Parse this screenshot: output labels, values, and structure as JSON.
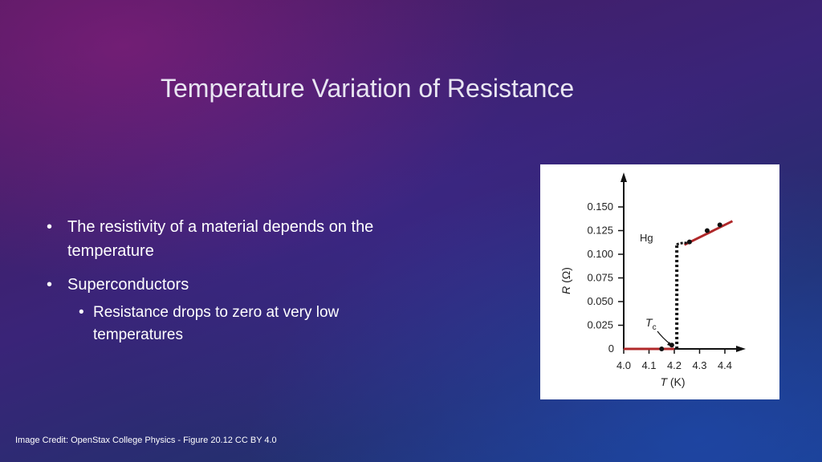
{
  "title": "Temperature Variation of Resistance",
  "bullets": [
    {
      "text": "The resistivity of a material depends on the temperature"
    },
    {
      "text": "Superconductors",
      "sub": [
        {
          "text": "Resistance drops to zero at very low temperatures"
        }
      ]
    }
  ],
  "credit": "Image Credit: OpenStax College Physics - Figure 20.12 CC BY 4.0",
  "chart_data": {
    "type": "line",
    "xlabel_symbol": "T",
    "xlabel_unit": "(K)",
    "ylabel_symbol": "R",
    "ylabel_unit": "(Ω)",
    "xlim": [
      4.0,
      4.4
    ],
    "ylim": [
      0,
      0.15
    ],
    "x_ticks": [
      "4.0",
      "4.1",
      "4.2",
      "4.3",
      "4.4"
    ],
    "y_ticks": [
      "0",
      "0.025",
      "0.050",
      "0.075",
      "0.100",
      "0.125",
      "0.150"
    ],
    "series_label": "Hg",
    "tc_label": "T",
    "tc_subscript": "c",
    "tc_value": 4.2,
    "points": [
      {
        "x": 4.15,
        "y": 0.0
      },
      {
        "x": 4.19,
        "y": 0.004
      },
      {
        "x": 4.26,
        "y": 0.113
      },
      {
        "x": 4.33,
        "y": 0.125
      },
      {
        "x": 4.38,
        "y": 0.131
      }
    ],
    "low_segment": {
      "x": [
        4.0,
        4.2
      ],
      "y": [
        0.0,
        0.0
      ]
    },
    "high_segment": {
      "x": [
        4.24,
        4.43
      ],
      "y": [
        0.11,
        0.135
      ]
    },
    "transition": {
      "x": 4.21,
      "y": [
        0.0,
        0.11
      ]
    },
    "colors": {
      "line": "#b0282a",
      "axis": "#111111",
      "point": "#111111"
    }
  }
}
